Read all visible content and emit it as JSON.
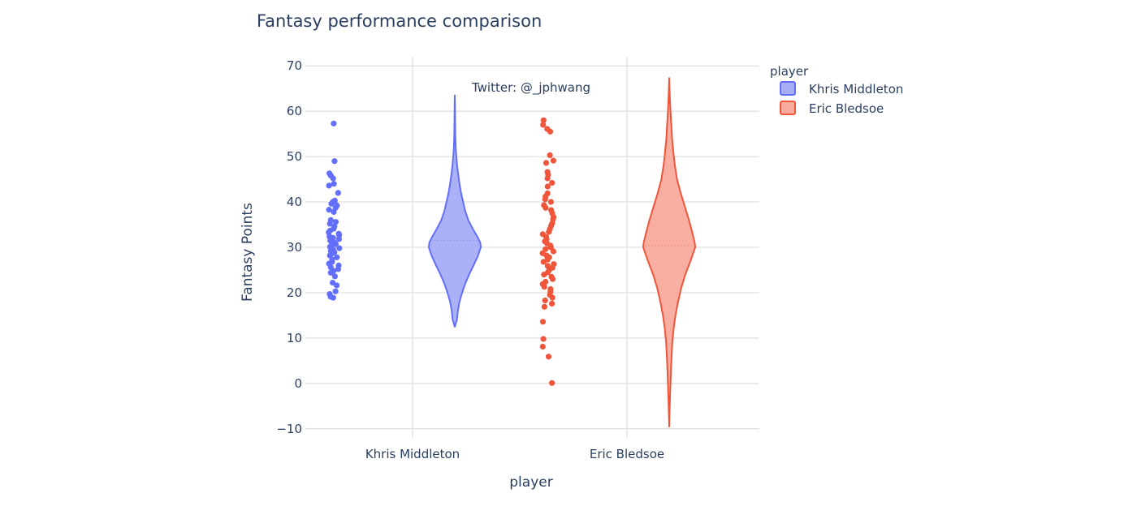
{
  "chart_data": {
    "type": "violin",
    "title": "Fantasy performance comparison",
    "xlabel": "player",
    "ylabel": "Fantasy Points",
    "ylim": [
      -12,
      72
    ],
    "yticks": [
      -10,
      0,
      10,
      20,
      30,
      40,
      50,
      60,
      70
    ],
    "ytick_labels": [
      "−10",
      "0",
      "10",
      "20",
      "30",
      "40",
      "50",
      "60",
      "70"
    ],
    "categories": [
      "Khris Middleton",
      "Eric Bledsoe"
    ],
    "grid": true,
    "legend": {
      "title": "player",
      "placement": "top-right"
    },
    "annotation": "Twitter: @_jphwang",
    "series": [
      {
        "name": "Khris Middleton",
        "color": "#636efa",
        "fill": "#a6adf5",
        "violin_profile": [
          [
            12.5,
            0.0
          ],
          [
            14,
            0.08
          ],
          [
            16,
            0.12
          ],
          [
            18,
            0.18
          ],
          [
            20,
            0.28
          ],
          [
            22,
            0.4
          ],
          [
            24,
            0.55
          ],
          [
            26,
            0.72
          ],
          [
            28,
            0.88
          ],
          [
            30,
            1.0
          ],
          [
            31,
            0.98
          ],
          [
            32,
            0.9
          ],
          [
            34,
            0.7
          ],
          [
            36,
            0.52
          ],
          [
            38,
            0.4
          ],
          [
            40,
            0.32
          ],
          [
            42,
            0.24
          ],
          [
            44,
            0.18
          ],
          [
            46,
            0.13
          ],
          [
            48,
            0.09
          ],
          [
            50,
            0.06
          ],
          [
            52,
            0.035
          ],
          [
            55,
            0.02
          ],
          [
            58,
            0.012
          ],
          [
            61,
            0.006
          ],
          [
            63.5,
            0.0
          ]
        ],
        "points": [
          57.3,
          49.0,
          46.3,
          45.8,
          45.2,
          44.0,
          43.6,
          42.0,
          40.3,
          40.0,
          39.6,
          39.2,
          38.7,
          38.3,
          37.8,
          36.0,
          35.6,
          35.2,
          34.6,
          34.1,
          33.7,
          33.3,
          33.0,
          32.7,
          32.4,
          32.1,
          31.8,
          31.5,
          31.2,
          31.0,
          30.7,
          30.4,
          30.1,
          29.8,
          29.5,
          29.2,
          28.9,
          28.6,
          28.2,
          27.8,
          27.3,
          26.8,
          26.4,
          26.0,
          25.6,
          25.2,
          24.8,
          24.4,
          23.6,
          22.2,
          21.6,
          20.3,
          19.7,
          19.1,
          18.9
        ]
      },
      {
        "name": "Eric Bledsoe",
        "color": "#ef553b",
        "fill": "#f8aa9c",
        "violin_profile": [
          [
            -9.5,
            0.0
          ],
          [
            -6,
            0.015
          ],
          [
            -3,
            0.03
          ],
          [
            0,
            0.05
          ],
          [
            3,
            0.07
          ],
          [
            6,
            0.09
          ],
          [
            9,
            0.12
          ],
          [
            12,
            0.17
          ],
          [
            15,
            0.24
          ],
          [
            18,
            0.34
          ],
          [
            21,
            0.46
          ],
          [
            24,
            0.62
          ],
          [
            27,
            0.82
          ],
          [
            29,
            0.94
          ],
          [
            30,
            1.0
          ],
          [
            31,
            0.98
          ],
          [
            33,
            0.9
          ],
          [
            36,
            0.76
          ],
          [
            39,
            0.6
          ],
          [
            42,
            0.44
          ],
          [
            45,
            0.3
          ],
          [
            48,
            0.22
          ],
          [
            51,
            0.16
          ],
          [
            54,
            0.11
          ],
          [
            57,
            0.08
          ],
          [
            60,
            0.05
          ],
          [
            63,
            0.025
          ],
          [
            65,
            0.012
          ],
          [
            67.3,
            0.0
          ]
        ],
        "points": [
          58.0,
          57.0,
          56.1,
          55.5,
          50.3,
          49.1,
          48.6,
          46.6,
          46.0,
          45.2,
          44.2,
          43.4,
          41.9,
          41.2,
          40.6,
          40.0,
          39.3,
          38.7,
          38.2,
          37.5,
          36.7,
          36.2,
          35.3,
          34.7,
          34.0,
          33.4,
          32.9,
          32.3,
          31.8,
          31.3,
          30.9,
          30.4,
          30.0,
          29.6,
          29.1,
          28.7,
          28.2,
          27.8,
          27.3,
          26.8,
          26.3,
          25.9,
          25.5,
          25.0,
          24.5,
          24.0,
          23.5,
          23.0,
          22.4,
          21.9,
          21.3,
          20.8,
          20.2,
          19.5,
          18.9,
          18.3,
          17.6,
          16.9,
          13.6,
          9.8,
          8.1,
          5.9,
          0.1
        ]
      }
    ]
  }
}
